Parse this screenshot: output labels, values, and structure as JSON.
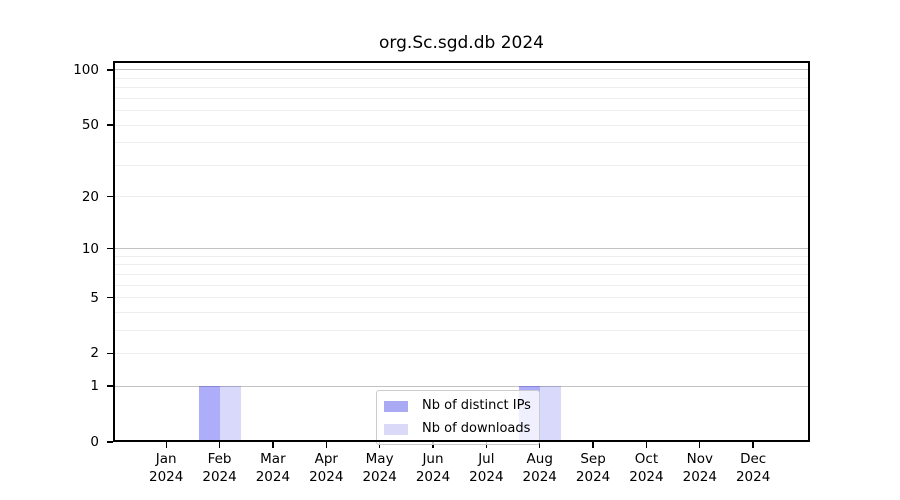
{
  "chart_data": {
    "type": "bar",
    "title": "org.Sc.sgd.db 2024",
    "categories": [
      "Jan",
      "Feb",
      "Mar",
      "Apr",
      "May",
      "Jun",
      "Jul",
      "Aug",
      "Sep",
      "Oct",
      "Nov",
      "Dec"
    ],
    "year_label": "2024",
    "series": [
      {
        "name": "Nb of distinct IPs",
        "swatch_hex": "#aaaaf4",
        "fill": "rgba(20,20,240,0.35)",
        "values": [
          0,
          1,
          0,
          0,
          0,
          0,
          0,
          1,
          0,
          0,
          0,
          0
        ]
      },
      {
        "name": "Nb of downloads",
        "swatch_hex": "#dadaf8",
        "fill": "rgba(20,20,230,0.16)",
        "values": [
          0,
          1,
          0,
          0,
          0,
          0,
          0,
          1,
          0,
          0,
          0,
          0
        ]
      }
    ],
    "y_axis": {
      "scale": "log10(x+1)",
      "tick_values": [
        0,
        1,
        2,
        5,
        10,
        20,
        50,
        100
      ],
      "major_gridlines": [
        1,
        10,
        100
      ],
      "minor_gridlines": [
        2,
        3,
        4,
        5,
        6,
        7,
        8,
        9,
        20,
        30,
        40,
        50,
        60,
        70,
        80,
        90
      ],
      "ymax": 112
    },
    "xlabel": "",
    "ylabel": "",
    "grid": true,
    "legend_position": "lower center"
  }
}
